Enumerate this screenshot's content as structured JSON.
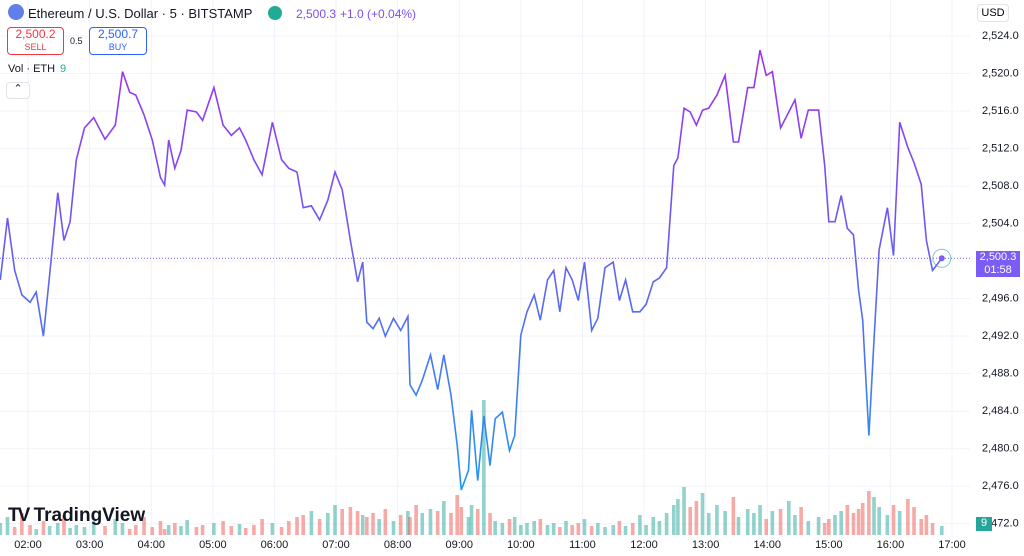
{
  "header": {
    "title": "Ethereum / U.S. Dollar · 5 · BITSTAMP",
    "quote": "2,500.3",
    "change": "+1.0 (+0.04%)",
    "sell_price": "2,500.2",
    "sell_label": "SELL",
    "spread": "0.5",
    "buy_price": "2,500.7",
    "buy_label": "BUY",
    "volume_label": "Vol · ETH",
    "volume_value": "9",
    "currency": "USD",
    "countdown": "01:58",
    "brand": "TradingView"
  },
  "chart_data": {
    "type": "line",
    "colors": [
      "#a22ff0",
      "#2196f3"
    ],
    "up_color": "#26a69a",
    "down_color": "#ef5350",
    "last_price": {
      "value": 2500.3,
      "label": "2,500.3"
    },
    "x": [
      93,
      100,
      107,
      114,
      122,
      128,
      135,
      141,
      149,
      155,
      161,
      167,
      175,
      184,
      195,
      205,
      212,
      219,
      225,
      233,
      241,
      249,
      253,
      257,
      263,
      269,
      275,
      284,
      290,
      301,
      310,
      318,
      326,
      332,
      340,
      348,
      358,
      367,
      374,
      382,
      388,
      396,
      404,
      412,
      419,
      426,
      434,
      441,
      446,
      450,
      456,
      462,
      468,
      476,
      483,
      490,
      492,
      498,
      504,
      512,
      519,
      525,
      532,
      538,
      542,
      549,
      552,
      558,
      564,
      570,
      575,
      582,
      589,
      594,
      600,
      606,
      613,
      619,
      626,
      632,
      638,
      644,
      650,
      656,
      662,
      669,
      675,
      682,
      690,
      696,
      702,
      709,
      716,
      722,
      729,
      735,
      742,
      749,
      753,
      759,
      765,
      771,
      777,
      783,
      791,
      799,
      807,
      812,
      821,
      827,
      833,
      839,
      845,
      853,
      861,
      867,
      873,
      880,
      890,
      896,
      900,
      906,
      912,
      918,
      924,
      929,
      933,
      939,
      944,
      949,
      957,
      963,
      969,
      977,
      983,
      990,
      995,
      1001,
      1010
    ],
    "values": [
      2498.0,
      2504.6,
      2499.0,
      2496.4,
      2495.6,
      2496.7,
      2492.0,
      2498.5,
      2507.3,
      2502.2,
      2504.2,
      2510.8,
      2514.2,
      2515.3,
      2513.0,
      2514.5,
      2520.2,
      2518.0,
      2517.7,
      2515.6,
      2512.9,
      2508.9,
      2508.1,
      2512.9,
      2509.9,
      2511.8,
      2516.1,
      2515.9,
      2515.0,
      2518.5,
      2514.5,
      2513.4,
      2514.2,
      2512.9,
      2510.8,
      2509.2,
      2514.8,
      2510.8,
      2509.9,
      2509.5,
      2505.7,
      2505.9,
      2504.4,
      2506.5,
      2509.5,
      2507.6,
      2502.2,
      2497.8,
      2499.9,
      2493.5,
      2492.8,
      2493.9,
      2492.0,
      2493.9,
      2492.6,
      2494.1,
      2486.8,
      2485.7,
      2487.3,
      2490.0,
      2486.3,
      2490.0,
      2485.7,
      2480.4,
      2475.6,
      2477.7,
      2484.1,
      2476.6,
      2483.5,
      2478.2,
      2483.2,
      2483.9,
      2479.8,
      2481.4,
      2492.1,
      2494.6,
      2496.4,
      2493.7,
      2498.0,
      2499.0,
      2494.6,
      2499.3,
      2498.0,
      2495.8,
      2499.9,
      2492.6,
      2493.9,
      2499.3,
      2499.9,
      2495.8,
      2498.0,
      2494.6,
      2494.6,
      2495.4,
      2497.8,
      2498.2,
      2499.3,
      2510.2,
      2511.0,
      2516.3,
      2515.9,
      2514.5,
      2516.1,
      2516.3,
      2517.7,
      2519.8,
      2512.7,
      2512.7,
      2518.5,
      2518.5,
      2522.5,
      2519.8,
      2520.2,
      2514.2,
      2515.9,
      2517.2,
      2513.1,
      2516.1,
      2516.1,
      2510.2,
      2504.2,
      2504.2,
      2507.0,
      2503.5,
      2502.8,
      2496.9,
      2493.7,
      2481.4,
      2491.6,
      2501.2,
      2505.7,
      2500.6,
      2514.8,
      2512.1,
      2510.5,
      2508.2,
      2502.2,
      2499.0,
      2500.3
    ],
    "volume": [
      12,
      18,
      8,
      22,
      10,
      6,
      14,
      9,
      12,
      20,
      7,
      10,
      8,
      14,
      9,
      16,
      12,
      6,
      10,
      18,
      8,
      14,
      6,
      10,
      12,
      9,
      15,
      8,
      10,
      12,
      14,
      9,
      11,
      7,
      10,
      16,
      12,
      8,
      14,
      18,
      20,
      24,
      16,
      22,
      30,
      26,
      28,
      24,
      20,
      18,
      22,
      16,
      26,
      14,
      20,
      24,
      18,
      30,
      22,
      26,
      24,
      34,
      22,
      40,
      28,
      18,
      30,
      26,
      135,
      22,
      14,
      12,
      16,
      18,
      10,
      12,
      14,
      16,
      10,
      12,
      8,
      14,
      10,
      12,
      16,
      9,
      12,
      8,
      10,
      14,
      9,
      12,
      20,
      10,
      18,
      14,
      22,
      30,
      36,
      48,
      28,
      34,
      42,
      22,
      30,
      24,
      38,
      18,
      26,
      22,
      30,
      16,
      24,
      26,
      34,
      20,
      28,
      14,
      18,
      12,
      16,
      20,
      24,
      30,
      22,
      26,
      32,
      44,
      38,
      28,
      20,
      30,
      24,
      36,
      28,
      16,
      20,
      12,
      9
    ],
    "xlim": [
      92.7,
      1037.5
    ],
    "xticks": [
      {
        "value": 120,
        "label": "02:00"
      },
      {
        "value": 180,
        "label": "03:00"
      },
      {
        "value": 240,
        "label": "04:00"
      },
      {
        "value": 300,
        "label": "05:00"
      },
      {
        "value": 360,
        "label": "06:00"
      },
      {
        "value": 420,
        "label": "07:00"
      },
      {
        "value": 480,
        "label": "08:00"
      },
      {
        "value": 540,
        "label": "09:00"
      },
      {
        "value": 600,
        "label": "10:00"
      },
      {
        "value": 660,
        "label": "11:00"
      },
      {
        "value": 720,
        "label": "12:00"
      },
      {
        "value": 780,
        "label": "13:00"
      },
      {
        "value": 840,
        "label": "14:00"
      },
      {
        "value": 900,
        "label": "15:00"
      },
      {
        "value": 960,
        "label": "16:00"
      },
      {
        "value": 1020,
        "label": "17:00"
      }
    ],
    "ylim": [
      2470.8,
      2527.84
    ],
    "yticks": [
      {
        "value": 2472,
        "label": "2,472.0"
      },
      {
        "value": 2476,
        "label": "2,476.0"
      },
      {
        "value": 2480,
        "label": "2,480.0"
      },
      {
        "value": 2484,
        "label": "2,484.0"
      },
      {
        "value": 2488,
        "label": "2,488.0"
      },
      {
        "value": 2492,
        "label": "2,492.0"
      },
      {
        "value": 2496,
        "label": "2,496.0"
      },
      {
        "value": 2500,
        "label": "2,500.0"
      },
      {
        "value": 2504,
        "label": "2,504.0"
      },
      {
        "value": 2508,
        "label": "2,508.0"
      },
      {
        "value": 2512,
        "label": "2,512.0"
      },
      {
        "value": 2516,
        "label": "2,516.0"
      },
      {
        "value": 2520,
        "label": "2,520.0"
      },
      {
        "value": 2524,
        "label": "2,524.0"
      }
    ],
    "grid": true
  }
}
